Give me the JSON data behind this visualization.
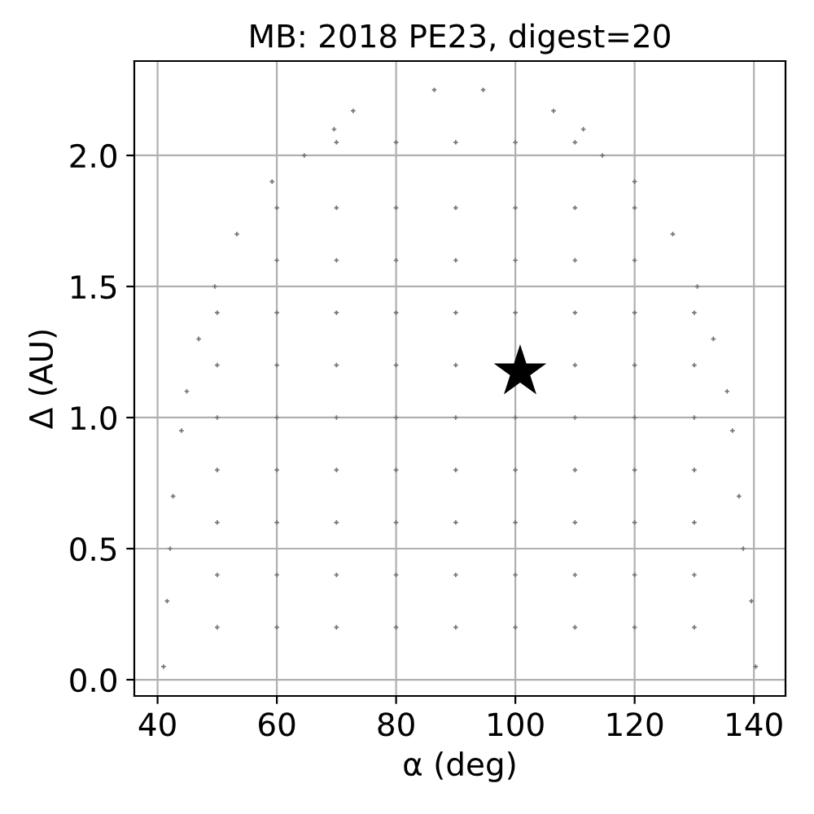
{
  "chart_data": {
    "type": "scatter",
    "title": "MB: 2018 PE23, digest=20",
    "xlabel": "α (deg)",
    "ylabel": "Δ (AU)",
    "xlim": [
      36.1,
      145.3
    ],
    "xticks": [
      40,
      60,
      80,
      100,
      120,
      140
    ],
    "ylim": [
      -0.062,
      2.36
    ],
    "yticks": [
      {
        "value": 0,
        "label": "0.0"
      },
      0.5,
      {
        "value": 1,
        "label": "1.0"
      },
      1.5,
      {
        "value": 2,
        "label": "2.0"
      }
    ],
    "grid": true,
    "series": [
      {
        "color": "#737373",
        "marker": "cross",
        "x": [
          41.0,
          41.6,
          42.1,
          42.6,
          44.0,
          44.9,
          46.9,
          49.6,
          53.3,
          59.2,
          64.6,
          69.6,
          72.8,
          86.4,
          94.6,
          106.4,
          111.4,
          114.6,
          120.0,
          126.4,
          130.5,
          133.2,
          135.5,
          136.4,
          137.5,
          138.2,
          139.6,
          140.3,
          50,
          60,
          70,
          80,
          90,
          100,
          110,
          120,
          130,
          50,
          60,
          70,
          80,
          90,
          100,
          110,
          120,
          130,
          50,
          60,
          70,
          80,
          90,
          100,
          110,
          120,
          130,
          50,
          60,
          70,
          80,
          90,
          100,
          110,
          120,
          130,
          50,
          60,
          70,
          80,
          90,
          100,
          110,
          120,
          130,
          50,
          60,
          70,
          80,
          90,
          110,
          120,
          130,
          50,
          60,
          70,
          80,
          90,
          100,
          110,
          120,
          130,
          60,
          70,
          80,
          90,
          100,
          110,
          120,
          60,
          70,
          80,
          90,
          100,
          110,
          120,
          70,
          80,
          90,
          100,
          110
        ],
        "values": [
          0.05,
          0.3,
          0.5,
          0.7,
          0.95,
          1.1,
          1.3,
          1.5,
          1.7,
          1.9,
          2.0,
          2.1,
          2.17,
          2.25,
          2.25,
          2.17,
          2.1,
          2.0,
          1.9,
          1.7,
          1.5,
          1.3,
          1.1,
          0.95,
          0.7,
          0.5,
          0.3,
          0.05,
          0.2,
          0.2,
          0.2,
          0.2,
          0.2,
          0.2,
          0.2,
          0.2,
          0.2,
          0.4,
          0.4,
          0.4,
          0.4,
          0.4,
          0.4,
          0.4,
          0.4,
          0.4,
          0.6,
          0.6,
          0.6,
          0.6,
          0.6,
          0.6,
          0.6,
          0.6,
          0.6,
          0.8,
          0.8,
          0.8,
          0.8,
          0.8,
          0.8,
          0.8,
          0.8,
          0.8,
          1.0,
          1.0,
          1.0,
          1.0,
          1.0,
          1.0,
          1.0,
          1.0,
          1.0,
          1.2,
          1.2,
          1.2,
          1.2,
          1.2,
          1.2,
          1.2,
          1.2,
          1.4,
          1.4,
          1.4,
          1.4,
          1.4,
          1.4,
          1.4,
          1.4,
          1.4,
          1.6,
          1.6,
          1.6,
          1.6,
          1.6,
          1.6,
          1.6,
          1.8,
          1.8,
          1.8,
          1.8,
          1.8,
          1.8,
          1.8,
          2.05,
          2.05,
          2.05,
          2.05,
          2.05
        ]
      },
      {
        "color": "#000000",
        "marker": "star",
        "x": [
          100.8
        ],
        "values": [
          1.174
        ]
      }
    ]
  }
}
